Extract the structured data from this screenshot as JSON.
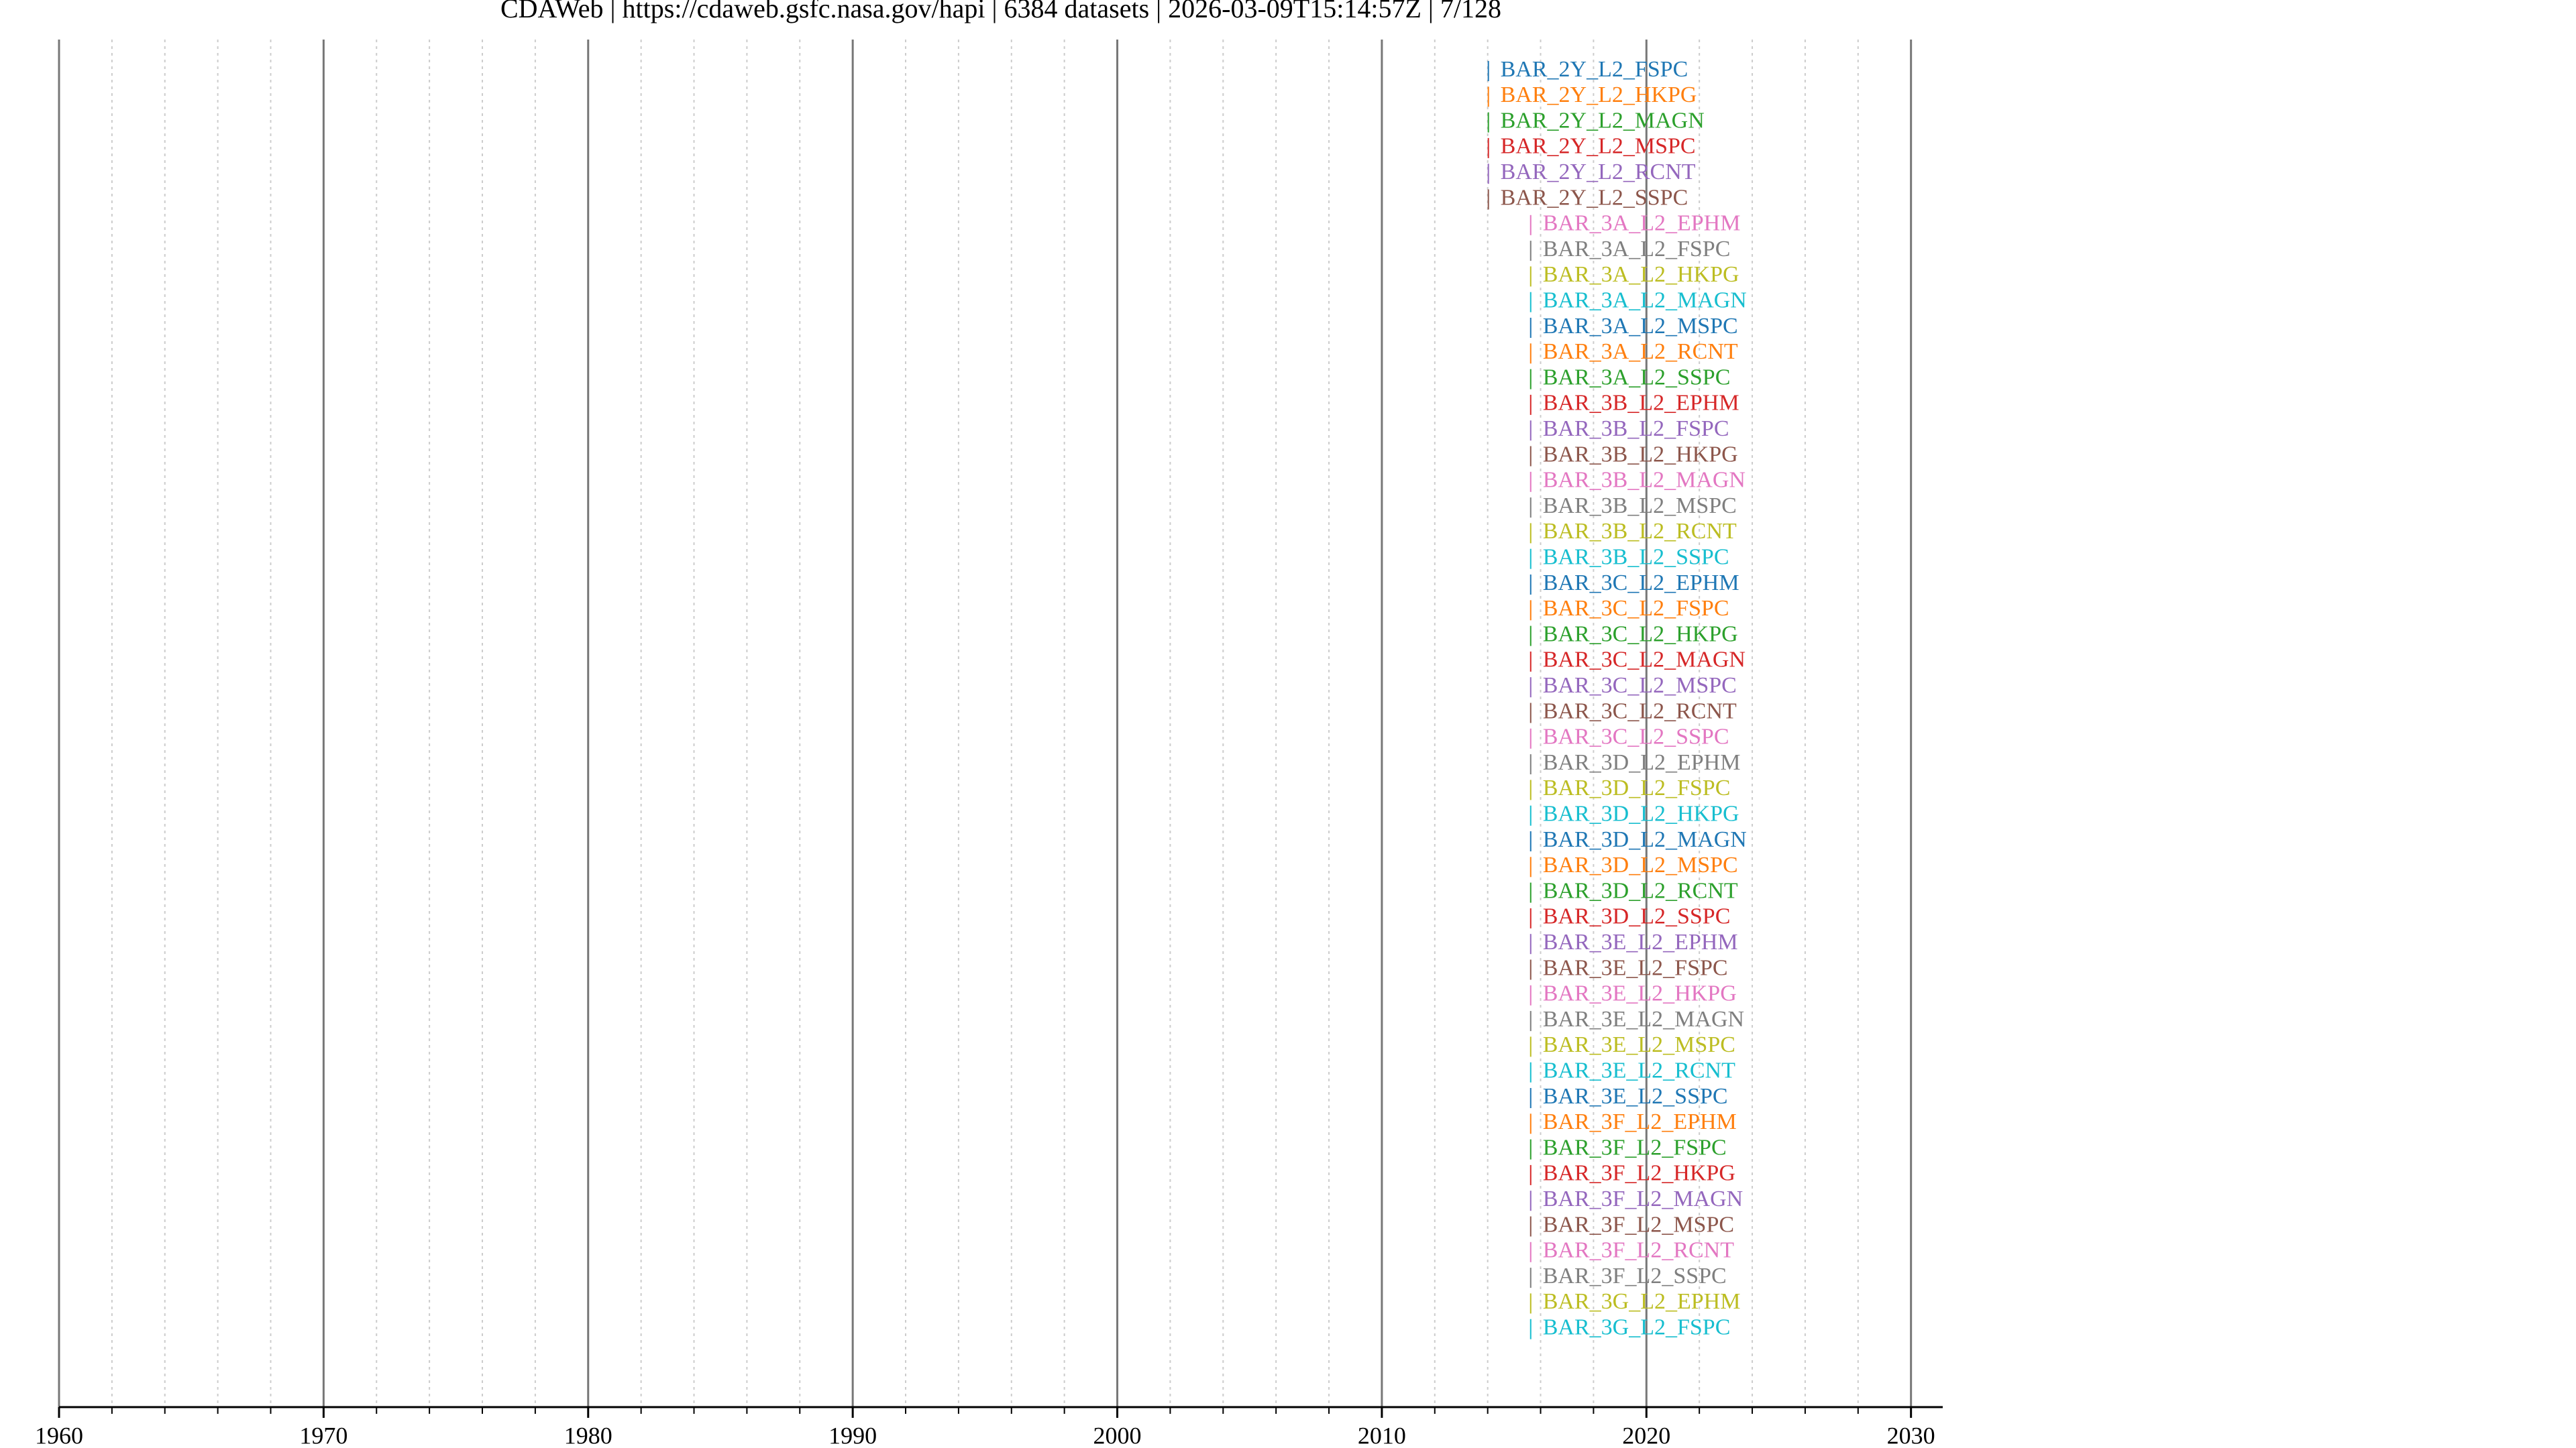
{
  "chart_data": {
    "type": "timeline",
    "title": "CDAWeb | https://cdaweb.gsfc.nasa.gov/hapi | 6384 datasets | 2026-03-09T15:14:57Z | 7/128",
    "categories": [
      "BAR_2Y_L2_FSPC",
      "BAR_2Y_L2_HKPG",
      "BAR_2Y_L2_MAGN",
      "BAR_2Y_L2_MSPC",
      "BAR_2Y_L2_RCNT",
      "BAR_2Y_L2_SSPC",
      "BAR_3A_L2_EPHM",
      "BAR_3A_L2_FSPC",
      "BAR_3A_L2_HKPG",
      "BAR_3A_L2_MAGN",
      "BAR_3A_L2_MSPC",
      "BAR_3A_L2_RCNT",
      "BAR_3A_L2_SSPC",
      "BAR_3B_L2_EPHM",
      "BAR_3B_L2_FSPC",
      "BAR_3B_L2_HKPG",
      "BAR_3B_L2_MAGN",
      "BAR_3B_L2_MSPC",
      "BAR_3B_L2_RCNT",
      "BAR_3B_L2_SSPC",
      "BAR_3C_L2_EPHM",
      "BAR_3C_L2_FSPC",
      "BAR_3C_L2_HKPG",
      "BAR_3C_L2_MAGN",
      "BAR_3C_L2_MSPC",
      "BAR_3C_L2_RCNT",
      "BAR_3C_L2_SSPC",
      "BAR_3D_L2_EPHM",
      "BAR_3D_L2_FSPC",
      "BAR_3D_L2_HKPG",
      "BAR_3D_L2_MAGN",
      "BAR_3D_L2_MSPC",
      "BAR_3D_L2_RCNT",
      "BAR_3D_L2_SSPC",
      "BAR_3E_L2_EPHM",
      "BAR_3E_L2_FSPC",
      "BAR_3E_L2_HKPG",
      "BAR_3E_L2_MAGN",
      "BAR_3E_L2_MSPC",
      "BAR_3E_L2_RCNT",
      "BAR_3E_L2_SSPC",
      "BAR_3F_L2_EPHM",
      "BAR_3F_L2_FSPC",
      "BAR_3F_L2_HKPG",
      "BAR_3F_L2_MAGN",
      "BAR_3F_L2_MSPC",
      "BAR_3F_L2_RCNT",
      "BAR_3F_L2_SSPC",
      "BAR_3G_L2_EPHM",
      "BAR_3G_L2_FSPC"
    ],
    "start": [
      2014.0,
      2014.0,
      2014.0,
      2014.0,
      2014.0,
      2014.0,
      2015.6,
      2015.6,
      2015.6,
      2015.6,
      2015.6,
      2015.6,
      2015.6,
      2015.6,
      2015.6,
      2015.6,
      2015.6,
      2015.6,
      2015.6,
      2015.6,
      2015.6,
      2015.6,
      2015.6,
      2015.6,
      2015.6,
      2015.6,
      2015.6,
      2015.6,
      2015.6,
      2015.6,
      2015.6,
      2015.6,
      2015.6,
      2015.6,
      2015.6,
      2015.6,
      2015.6,
      2015.6,
      2015.6,
      2015.6,
      2015.6,
      2015.6,
      2015.6,
      2015.6,
      2015.6,
      2015.6,
      2015.6,
      2015.6,
      2015.6,
      2015.6
    ],
    "end": [
      2014.05,
      2014.05,
      2014.05,
      2014.05,
      2014.05,
      2014.05,
      2015.65,
      2015.65,
      2015.65,
      2015.65,
      2015.65,
      2015.65,
      2015.65,
      2015.65,
      2015.65,
      2015.65,
      2015.65,
      2015.65,
      2015.65,
      2015.65,
      2015.65,
      2015.65,
      2015.65,
      2015.65,
      2015.65,
      2015.65,
      2015.65,
      2015.65,
      2015.65,
      2015.65,
      2015.65,
      2015.65,
      2015.65,
      2015.65,
      2015.65,
      2015.65,
      2015.65,
      2015.65,
      2015.65,
      2015.65,
      2015.65,
      2015.65,
      2015.65,
      2015.65,
      2015.65,
      2015.65,
      2015.65,
      2015.65,
      2015.65,
      2015.65
    ],
    "palette": [
      "#1f77b4",
      "#ff7f0e",
      "#2ca02c",
      "#d62728",
      "#9467bd",
      "#8c564b",
      "#e377c2",
      "#7f7f7f",
      "#bcbd22",
      "#17becf"
    ],
    "xlim": [
      1960,
      2031.2
    ],
    "xticks": [
      1960,
      1970,
      1980,
      1990,
      2000,
      2010,
      2020,
      2030
    ],
    "minor_xticks": [
      1962,
      1964,
      1966,
      1968,
      1972,
      1974,
      1976,
      1978,
      1982,
      1984,
      1986,
      1988,
      1992,
      1994,
      1996,
      1998,
      2002,
      2004,
      2006,
      2008,
      2012,
      2014,
      2016,
      2018,
      2022,
      2024,
      2026,
      2028
    ],
    "grid": true
  }
}
